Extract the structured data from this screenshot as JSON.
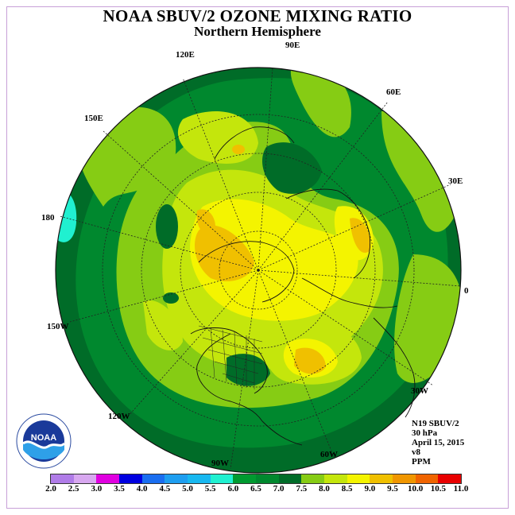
{
  "header": {
    "title": "NOAA SBUV/2 OZONE MIXING RATIO",
    "subtitle": "Northern Hemisphere"
  },
  "longitude_labels": [
    "90E",
    "60E",
    "30E",
    "0",
    "30W",
    "60W",
    "90W",
    "120W",
    "150W",
    "180",
    "150E",
    "120E"
  ],
  "info": {
    "instrument": "N19 SBUV/2",
    "level": "30 hPa",
    "date": "April 15, 2015",
    "version": "v8",
    "units": "PPM"
  },
  "legend": {
    "ticks": [
      "2.0",
      "2.5",
      "3.0",
      "3.5",
      "4.0",
      "4.5",
      "5.0",
      "5.5",
      "6.0",
      "6.5",
      "7.0",
      "7.5",
      "8.0",
      "8.5",
      "9.0",
      "9.5",
      "10.0",
      "10.5",
      "11.0"
    ],
    "colors": [
      "#b07ce8",
      "#d8a8f0",
      "#e000e0",
      "#0000e0",
      "#1a6ef0",
      "#1e9ef0",
      "#18b8f0",
      "#20f0d0",
      "#009a30",
      "#00882e",
      "#006c28",
      "#86cc14",
      "#c4e60c",
      "#f4f400",
      "#f0c000",
      "#f09600",
      "#f06400",
      "#e80000",
      "#8c5030"
    ]
  },
  "logo": {
    "text": "NOAA"
  }
}
